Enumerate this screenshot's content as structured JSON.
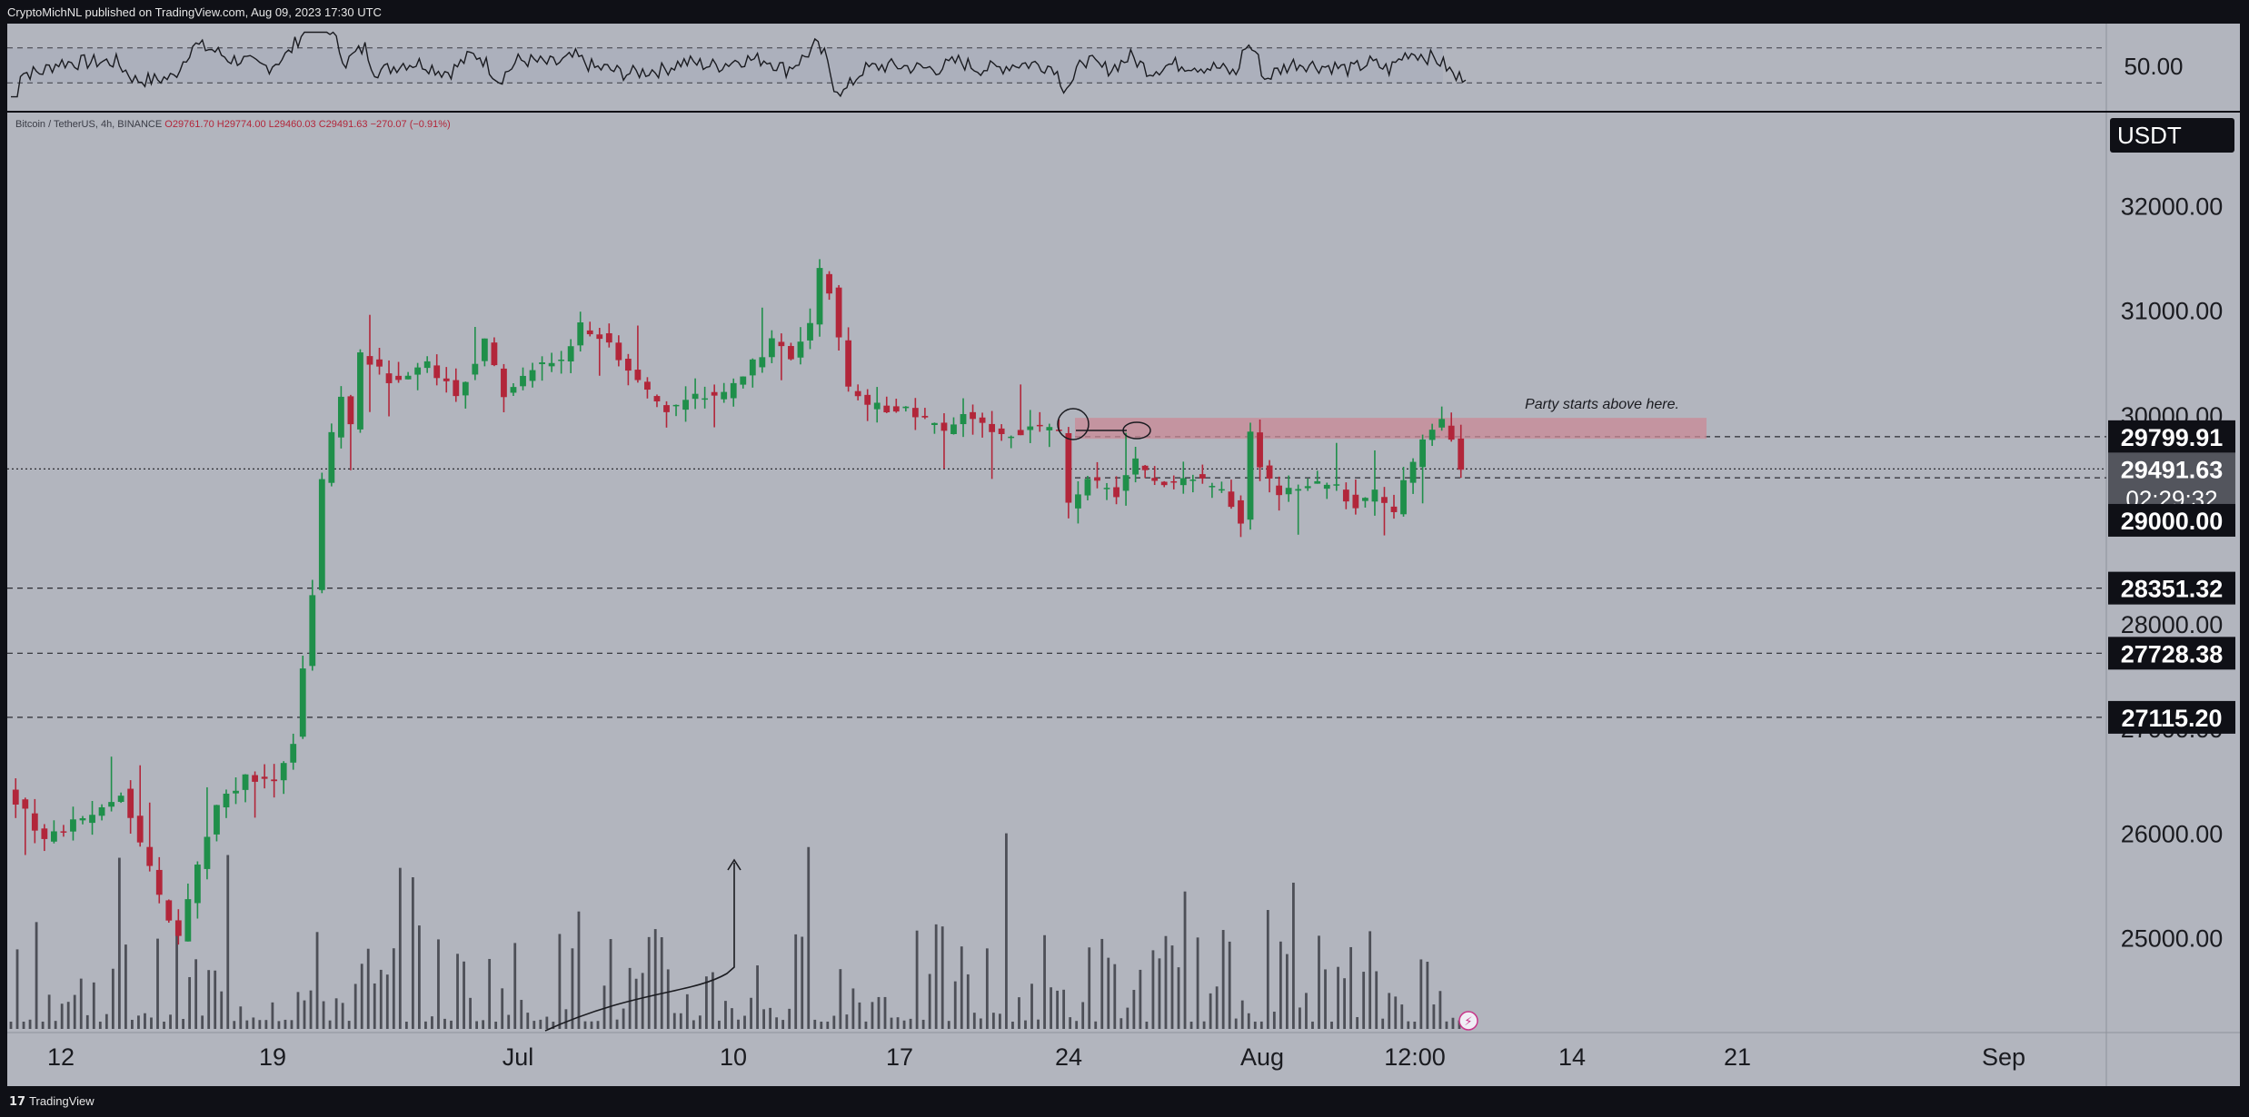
{
  "header": {
    "publisher": "CryptoMichNL published on TradingView.com, Aug 09, 2023 17:30 UTC"
  },
  "footer": {
    "brand": "TradingView",
    "logo_glyph": "17"
  },
  "legend": {
    "symbol": "Bitcoin / TetherUS, 4h, BINANCE",
    "ohlc": "O29761.70  H29774.00  L29460.03  C29491.63  −270.07 (−0.91%)"
  },
  "colors": {
    "background": "#b2b5be",
    "frame": "#0f1016",
    "up": "#1f8f4a",
    "down": "#b2263a",
    "zone": "#c98a96",
    "volume": "#3b3d45"
  },
  "chart_data": {
    "type": "candlestick",
    "symbol": "BTCUSDT",
    "timeframe": "4h",
    "exchange": "BINANCE",
    "currency": "USDT",
    "ylim": [
      24100,
      32900
    ],
    "x_ticks": [
      "12",
      "19",
      "Jul",
      "10",
      "17",
      "24",
      "Aug",
      "12:00",
      "14",
      "21",
      "Sep"
    ],
    "y_ticks": [
      25000,
      26000,
      27000,
      28000,
      29000,
      30000,
      31000,
      32000
    ],
    "y_tick_labels": [
      "25000.00",
      "26000.00",
      "27000.00",
      "28000.00",
      "29000.00",
      "30000.00",
      "31000.00",
      "32000.00"
    ],
    "price_path": [
      [
        0,
        26450
      ],
      [
        4,
        25950
      ],
      [
        8,
        26150
      ],
      [
        12,
        26400
      ],
      [
        16,
        25400
      ],
      [
        18,
        25000
      ],
      [
        20,
        25700
      ],
      [
        22,
        26250
      ],
      [
        25,
        26550
      ],
      [
        28,
        26500
      ],
      [
        30,
        26900
      ],
      [
        32,
        28300
      ],
      [
        33,
        29400
      ],
      [
        35,
        30200
      ],
      [
        36,
        29900
      ],
      [
        37,
        30600
      ],
      [
        40,
        30350
      ],
      [
        44,
        30500
      ],
      [
        47,
        30200
      ],
      [
        50,
        30700
      ],
      [
        52,
        30200
      ],
      [
        55,
        30450
      ],
      [
        58,
        30550
      ],
      [
        60,
        30850
      ],
      [
        63,
        30700
      ],
      [
        66,
        30300
      ],
      [
        69,
        30050
      ],
      [
        72,
        30200
      ],
      [
        75,
        30200
      ],
      [
        78,
        30500
      ],
      [
        80,
        30700
      ],
      [
        82,
        30550
      ],
      [
        84,
        30850
      ],
      [
        85,
        31400
      ],
      [
        86,
        31200
      ],
      [
        88,
        30250
      ],
      [
        90,
        30100
      ],
      [
        94,
        30050
      ],
      [
        98,
        29850
      ],
      [
        100,
        30000
      ],
      [
        104,
        29800
      ],
      [
        108,
        29900
      ],
      [
        110,
        29850
      ],
      [
        111,
        29150
      ],
      [
        113,
        29400
      ],
      [
        116,
        29250
      ],
      [
        118,
        29550
      ],
      [
        120,
        29350
      ],
      [
        124,
        29400
      ],
      [
        127,
        29300
      ],
      [
        129,
        29000
      ],
      [
        130,
        29850
      ],
      [
        131,
        29500
      ],
      [
        133,
        29250
      ],
      [
        136,
        29350
      ],
      [
        139,
        29300
      ],
      [
        141,
        29150
      ],
      [
        143,
        29250
      ],
      [
        145,
        29100
      ],
      [
        146,
        29350
      ],
      [
        148,
        29750
      ],
      [
        150,
        29950
      ],
      [
        151,
        29800
      ],
      [
        152,
        29491.63
      ]
    ],
    "last_candle": {
      "open": 29761.7,
      "high": 29774.0,
      "low": 29460.03,
      "close": 29491.63,
      "change": -270.07,
      "change_pct": -0.91
    },
    "horizontal_levels": [
      {
        "price": 29799.91,
        "label": "29799.91",
        "style": "dashed"
      },
      {
        "price": 29491.63,
        "label": "29491.63",
        "style": "dotted"
      },
      {
        "price": 29406.92,
        "label": "29406.92",
        "style": "dashed"
      },
      {
        "price": 28351.32,
        "label": "28351.32",
        "style": "dashed"
      },
      {
        "price": 27728.38,
        "label": "27728.38",
        "style": "dashed"
      },
      {
        "price": 27115.2,
        "label": "27115.20",
        "style": "dashed"
      }
    ],
    "price_scale_labels": {
      "currency": "USDT",
      "last": "29491.63",
      "countdown": "02:29:32",
      "level_29000": "29000.00"
    },
    "resistance_zone": {
      "from": 29780,
      "to": 29980,
      "annotation": "Party starts above here."
    },
    "rsi": {
      "label": "50.00",
      "upper": 70,
      "lower": 30
    }
  }
}
